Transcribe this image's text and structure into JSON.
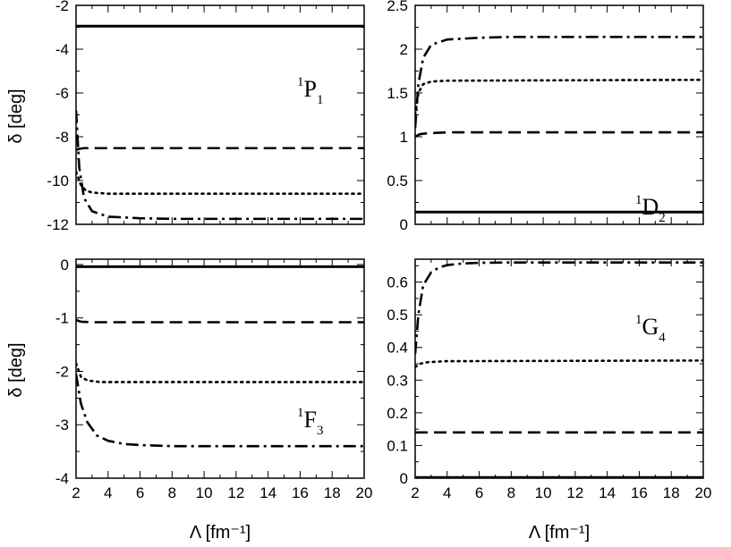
{
  "chart_data": [
    {
      "type": "line",
      "panel": "top-left",
      "label": {
        "sup": "1",
        "main": "P",
        "sub": "1"
      },
      "xlim": [
        2,
        20
      ],
      "ylim": [
        -12,
        -2
      ],
      "yticks": [
        -12,
        -10,
        -8,
        -6,
        -4,
        -2
      ],
      "yticklabels": [
        "-12",
        "-10",
        "-8",
        "-6",
        "-4",
        "-2"
      ],
      "ylabel": "δ [deg]",
      "xlabel": "",
      "series": [
        {
          "style": "solid",
          "x": [
            2,
            20
          ],
          "y": [
            -2.95,
            -2.95
          ]
        },
        {
          "style": "dashed",
          "x": [
            2,
            2.2,
            2.5,
            3,
            20
          ],
          "y": [
            -8.6,
            -8.55,
            -8.52,
            -8.52,
            -8.52
          ]
        },
        {
          "style": "dotted",
          "x": [
            2,
            2.3,
            2.6,
            3,
            4,
            6,
            20
          ],
          "y": [
            -9.6,
            -10.2,
            -10.45,
            -10.55,
            -10.6,
            -10.6,
            -10.6
          ]
        },
        {
          "style": "dashdot",
          "x": [
            2,
            2.2,
            2.5,
            3,
            4,
            6,
            8,
            20
          ],
          "y": [
            -6.8,
            -9.4,
            -10.8,
            -11.4,
            -11.65,
            -11.72,
            -11.75,
            -11.75
          ]
        }
      ]
    },
    {
      "type": "line",
      "panel": "top-right",
      "label": {
        "sup": "1",
        "main": "D",
        "sub": "2"
      },
      "xlim": [
        2,
        20
      ],
      "ylim": [
        0,
        2.5
      ],
      "yticks": [
        0,
        0.5,
        1,
        1.5,
        2,
        2.5
      ],
      "yticklabels": [
        "0",
        "0.5",
        "1",
        "1.5",
        "2",
        "2.5"
      ],
      "ylabel": "",
      "xlabel": "",
      "series": [
        {
          "style": "solid",
          "x": [
            2,
            20
          ],
          "y": [
            0.14,
            0.14
          ]
        },
        {
          "style": "dashed",
          "x": [
            2,
            2.3,
            2.8,
            4,
            20
          ],
          "y": [
            1.0,
            1.03,
            1.04,
            1.05,
            1.05
          ]
        },
        {
          "style": "dotted",
          "x": [
            2,
            2.2,
            2.5,
            3,
            4,
            20
          ],
          "y": [
            1.25,
            1.5,
            1.6,
            1.63,
            1.64,
            1.65
          ]
        },
        {
          "style": "dashdot",
          "x": [
            2,
            2.2,
            2.5,
            3,
            4,
            6,
            8,
            20
          ],
          "y": [
            1.1,
            1.6,
            1.9,
            2.05,
            2.11,
            2.13,
            2.14,
            2.14
          ]
        }
      ]
    },
    {
      "type": "line",
      "panel": "bottom-left",
      "label": {
        "sup": "1",
        "main": "F",
        "sub": "3"
      },
      "xlim": [
        2,
        20
      ],
      "ylim": [
        -4,
        0.1
      ],
      "yticks": [
        -4,
        -3,
        -2,
        -1,
        0
      ],
      "yticklabels": [
        "-4",
        "-3",
        "-2",
        "-1",
        "0"
      ],
      "ylabel": "δ [deg]",
      "xlabel": "Λ [fm⁻¹]",
      "series": [
        {
          "style": "solid",
          "x": [
            2,
            20
          ],
          "y": [
            -0.04,
            -0.04
          ]
        },
        {
          "style": "dashed",
          "x": [
            2,
            2.3,
            3,
            20
          ],
          "y": [
            -1.04,
            -1.07,
            -1.08,
            -1.08
          ]
        },
        {
          "style": "dotted",
          "x": [
            2,
            2.3,
            2.7,
            3.5,
            5,
            20
          ],
          "y": [
            -1.85,
            -2.1,
            -2.17,
            -2.2,
            -2.2,
            -2.2
          ]
        },
        {
          "style": "dashdot",
          "x": [
            2,
            2.3,
            2.7,
            3.3,
            4,
            5,
            6,
            8,
            20
          ],
          "y": [
            -2.05,
            -2.6,
            -2.95,
            -3.2,
            -3.3,
            -3.36,
            -3.38,
            -3.4,
            -3.4
          ]
        }
      ]
    },
    {
      "type": "line",
      "panel": "bottom-right",
      "label": {
        "sup": "1",
        "main": "G",
        "sub": "4"
      },
      "xlim": [
        2,
        20
      ],
      "ylim": [
        0,
        0.67
      ],
      "yticks": [
        0,
        0.1,
        0.2,
        0.3,
        0.4,
        0.5,
        0.6
      ],
      "yticklabels": [
        "0",
        "0.1",
        "0.2",
        "0.3",
        "0.4",
        "0.5",
        "0.6"
      ],
      "ylabel": "",
      "xlabel": "Λ [fm⁻¹]",
      "series": [
        {
          "style": "solid",
          "x": [
            2,
            20
          ],
          "y": [
            0.002,
            0.002
          ]
        },
        {
          "style": "dashed",
          "x": [
            2,
            20
          ],
          "y": [
            0.14,
            0.14
          ]
        },
        {
          "style": "dotted",
          "x": [
            2,
            2.3,
            2.8,
            4,
            20
          ],
          "y": [
            0.34,
            0.35,
            0.355,
            0.358,
            0.36
          ]
        },
        {
          "style": "dashdot",
          "x": [
            2,
            2.2,
            2.5,
            3,
            3.5,
            4,
            5,
            6,
            8,
            20
          ],
          "y": [
            0.38,
            0.5,
            0.59,
            0.63,
            0.645,
            0.652,
            0.657,
            0.659,
            0.66,
            0.66
          ]
        }
      ]
    }
  ],
  "xaxis": {
    "ticks": [
      2,
      4,
      6,
      8,
      10,
      12,
      14,
      16,
      18,
      20
    ],
    "ticklabels": [
      "2",
      "4",
      "6",
      "8",
      "10",
      "12",
      "14",
      "16",
      "18",
      "20"
    ]
  }
}
